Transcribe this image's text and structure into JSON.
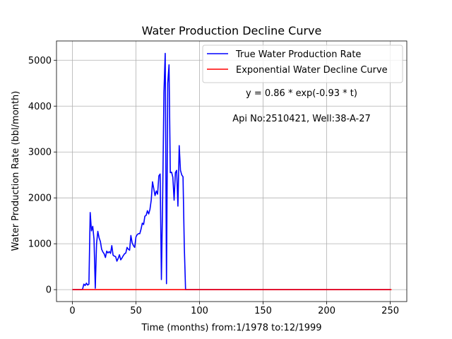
{
  "chart_data": {
    "type": "line",
    "title": "Water Production Decline Curve",
    "xlabel": "Time (months) from:1/1978 to:12/1999",
    "ylabel": "Water Production Rate (bbl/month)",
    "xlim": [
      -12.5,
      263
    ],
    "ylim": [
      -260,
      5420
    ],
    "x_ticks": [
      0,
      50,
      100,
      150,
      200,
      250
    ],
    "y_ticks": [
      0,
      1000,
      2000,
      3000,
      4000,
      5000
    ],
    "grid": true,
    "legend_position": "top-right",
    "annotations": [
      "y = 0.86 * exp(-0.93 * t)",
      "Api No:2510421, Well:38-A-27"
    ],
    "series": [
      {
        "name": "True Water Production Rate",
        "color": "#0000ff",
        "x": [
          0,
          1,
          2,
          3,
          4,
          5,
          6,
          7,
          8,
          9,
          10,
          11,
          12,
          13,
          14,
          15,
          16,
          17,
          18,
          19,
          20,
          21,
          22,
          23,
          24,
          25,
          26,
          27,
          28,
          29,
          30,
          31,
          32,
          33,
          34,
          35,
          36,
          37,
          38,
          39,
          40,
          41,
          42,
          43,
          44,
          45,
          46,
          47,
          48,
          49,
          50,
          51,
          52,
          53,
          54,
          55,
          56,
          57,
          58,
          59,
          60,
          61,
          62,
          63,
          64,
          65,
          66,
          67,
          68,
          69,
          70,
          71,
          72,
          73,
          74,
          75,
          76,
          77,
          78,
          79,
          80,
          81,
          82,
          83,
          84,
          85,
          86,
          87,
          88,
          89,
          90,
          91,
          92,
          93,
          94,
          95,
          100,
          150,
          200,
          250
        ],
        "y": [
          0,
          0,
          0,
          0,
          0,
          0,
          0,
          0,
          10,
          120,
          90,
          140,
          100,
          120,
          1680,
          1280,
          1380,
          1100,
          30,
          1000,
          1270,
          1130,
          1050,
          880,
          820,
          780,
          700,
          840,
          800,
          830,
          790,
          960,
          750,
          730,
          720,
          620,
          680,
          760,
          650,
          690,
          740,
          780,
          800,
          920,
          880,
          860,
          1180,
          1020,
          960,
          920,
          1150,
          1200,
          1220,
          1220,
          1320,
          1450,
          1420,
          1600,
          1620,
          1720,
          1650,
          1750,
          1950,
          2350,
          2200,
          2050,
          2150,
          2080,
          2480,
          2520,
          220,
          2020,
          4300,
          5150,
          130,
          4500,
          4900,
          2550,
          2560,
          2450,
          1950,
          2550,
          2600,
          1820,
          3140,
          2600,
          2500,
          2460,
          950,
          0,
          0,
          0,
          0,
          0,
          0,
          0,
          0,
          0,
          0,
          0
        ]
      },
      {
        "name": "Exponential Water Decline Curve",
        "color": "#ff0000",
        "x": [
          0,
          251
        ],
        "y": [
          0,
          0
        ]
      }
    ]
  }
}
